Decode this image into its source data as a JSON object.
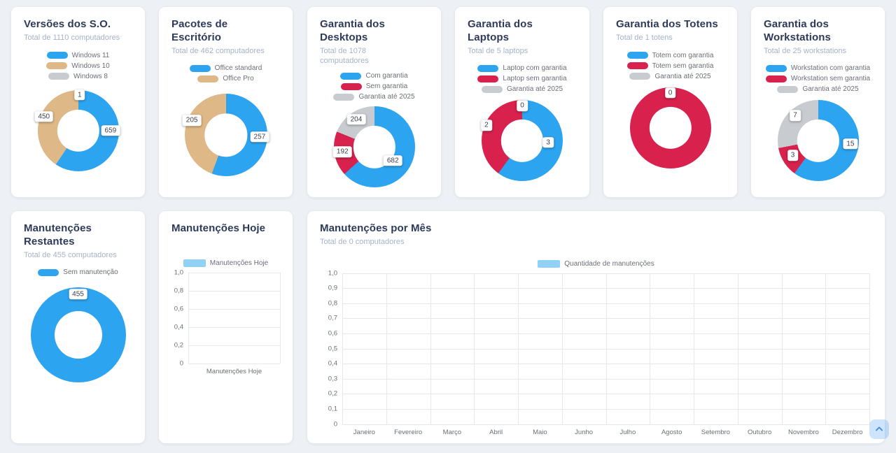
{
  "page": {
    "background": "#edf0f4"
  },
  "colors": {
    "blue": "#2da4f0",
    "tan": "#deb887",
    "gray": "#c8ccd1",
    "red": "#d8214d",
    "light_blue": "#90d1f5",
    "title_text": "#2e3a59",
    "subtitle_text": "#a6b3c6"
  },
  "chart_data": [
    {
      "type": "pie",
      "title": "Versões dos S.O.",
      "subtitle": "Total de 1110 computadores",
      "legend": [
        "Windows 11",
        "Windows 10",
        "Windows 8"
      ],
      "values": [
        659,
        450,
        1
      ],
      "colors": [
        "#2da4f0",
        "#deb887",
        "#c8ccd1"
      ]
    },
    {
      "type": "pie",
      "title": "Pacotes de Escritório",
      "subtitle": "Total de 462 computadores",
      "legend": [
        "Office standard",
        "Office Pro"
      ],
      "values": [
        257,
        205
      ],
      "colors": [
        "#2da4f0",
        "#deb887"
      ]
    },
    {
      "type": "pie",
      "title": "Garantia dos Desktops",
      "subtitle": "Total de 1078 computadores",
      "legend": [
        "Com garantia",
        "Sem garantia",
        "Garantia até 2025"
      ],
      "values": [
        682,
        192,
        204
      ],
      "colors": [
        "#2da4f0",
        "#d8214d",
        "#c8ccd1"
      ]
    },
    {
      "type": "pie",
      "title": "Garantia dos Laptops",
      "subtitle": "Total de 5 laptops",
      "legend": [
        "Laptop com garantia",
        "Laptop sem garantia",
        "Garantia até 2025"
      ],
      "values": [
        3,
        2,
        0
      ],
      "colors": [
        "#2da4f0",
        "#d8214d",
        "#c8ccd1"
      ]
    },
    {
      "type": "pie",
      "title": "Garantia dos Totens",
      "subtitle": "Total de 1 totens",
      "legend": [
        "Totem com garantia",
        "Totem sem garantia",
        "Garantia até 2025"
      ],
      "values": [
        0,
        1,
        0
      ],
      "colors": [
        "#2da4f0",
        "#d8214d",
        "#c8ccd1"
      ]
    },
    {
      "type": "pie",
      "title": "Garantia dos Workstations",
      "subtitle": "Total de 25 workstations",
      "legend": [
        "Workstation com garantia",
        "Workstation sem garantia",
        "Garantia até 2025"
      ],
      "values": [
        15,
        3,
        7
      ],
      "colors": [
        "#2da4f0",
        "#d8214d",
        "#c8ccd1"
      ]
    },
    {
      "type": "pie",
      "title": "Manutenções Restantes",
      "subtitle": "Total de 455 computadores",
      "legend": [
        "Sem manutenção"
      ],
      "values": [
        455
      ],
      "colors": [
        "#2da4f0"
      ]
    },
    {
      "type": "bar",
      "title": "Manutenções Hoje",
      "legend": [
        "Manutenções Hoje"
      ],
      "legend_color": "#90d1f5",
      "y_ticks": [
        "1,0",
        "0,8",
        "0,6",
        "0,4",
        "0,2",
        "0"
      ],
      "x_labels": [
        "Manutenções Hoje"
      ],
      "values": [
        0
      ],
      "ylim": [
        0,
        1
      ]
    },
    {
      "type": "bar",
      "title": "Manutenções por Mês",
      "subtitle": "Total de 0 computadores",
      "legend": [
        "Quantidade de manutenções"
      ],
      "legend_color": "#90d1f5",
      "y_ticks": [
        "1,0",
        "0,9",
        "0,8",
        "0,7",
        "0,6",
        "0,5",
        "0,4",
        "0,3",
        "0,2",
        "0,1",
        "0"
      ],
      "x_labels": [
        "Janeiro",
        "Fevereiro",
        "Março",
        "Abril",
        "Maio",
        "Junho",
        "Julho",
        "Agosto",
        "Setembro",
        "Outubro",
        "Novembro",
        "Dezembro"
      ],
      "values": [
        0,
        0,
        0,
        0,
        0,
        0,
        0,
        0,
        0,
        0,
        0,
        0
      ],
      "ylim": [
        0,
        1
      ]
    }
  ],
  "icons": {
    "scroll_top": "chevron-up"
  }
}
